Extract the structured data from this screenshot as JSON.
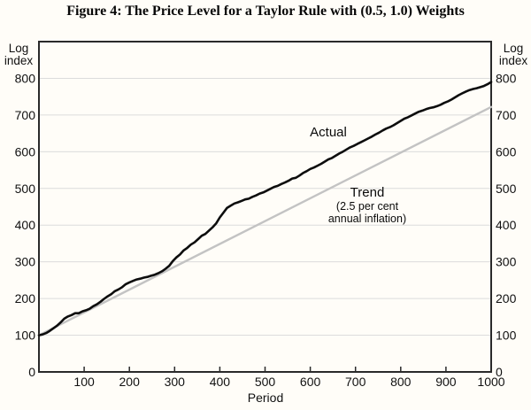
{
  "figure": {
    "title": "Figure 4: The Price Level for a Taylor Rule with (0.5, 1.0) Weights"
  },
  "annotations": {
    "actual_label": "Actual",
    "trend_label": "Trend",
    "trend_sub_line1": "(2.5 per cent",
    "trend_sub_line2": "annual inflation)"
  },
  "colors": {
    "background": "#fffdf8",
    "axis_box": "#2a2a2a",
    "gridline": "#dcdcdc",
    "actual_line": "#0d0d0d",
    "trend_line": "#c3c3c3",
    "text": "#111111"
  },
  "chart_data": {
    "type": "line",
    "title": "Figure 4: The Price Level for a Taylor Rule with (0.5, 1.0) Weights",
    "xlabel": "Period",
    "ylabel_left": "Log index",
    "ylabel_right": "Log index",
    "xlim": [
      0,
      1000
    ],
    "ylim": [
      0,
      900
    ],
    "xticks": [
      100,
      200,
      300,
      400,
      500,
      600,
      700,
      800,
      900,
      1000
    ],
    "yticks": [
      0,
      100,
      200,
      300,
      400,
      500,
      600,
      700,
      800
    ],
    "grid": "horizontal",
    "legend_position": "inline-annotations",
    "series": [
      {
        "name": "Actual",
        "color": "#0d0d0d",
        "width": 2.6,
        "points": [
          [
            0,
            100
          ],
          [
            8,
            102
          ],
          [
            16,
            106
          ],
          [
            24,
            112
          ],
          [
            32,
            119
          ],
          [
            40,
            126
          ],
          [
            48,
            135
          ],
          [
            56,
            145
          ],
          [
            64,
            151
          ],
          [
            72,
            155
          ],
          [
            80,
            160
          ],
          [
            88,
            160
          ],
          [
            96,
            165
          ],
          [
            104,
            168
          ],
          [
            112,
            172
          ],
          [
            120,
            179
          ],
          [
            128,
            184
          ],
          [
            136,
            191
          ],
          [
            144,
            199
          ],
          [
            152,
            206
          ],
          [
            160,
            212
          ],
          [
            168,
            220
          ],
          [
            176,
            225
          ],
          [
            184,
            231
          ],
          [
            192,
            239
          ],
          [
            200,
            244
          ],
          [
            208,
            248
          ],
          [
            216,
            252
          ],
          [
            224,
            254
          ],
          [
            232,
            257
          ],
          [
            240,
            259
          ],
          [
            248,
            262
          ],
          [
            256,
            265
          ],
          [
            264,
            269
          ],
          [
            272,
            274
          ],
          [
            280,
            281
          ],
          [
            288,
            289
          ],
          [
            296,
            302
          ],
          [
            304,
            312
          ],
          [
            312,
            320
          ],
          [
            320,
            331
          ],
          [
            328,
            338
          ],
          [
            336,
            347
          ],
          [
            344,
            353
          ],
          [
            352,
            362
          ],
          [
            360,
            371
          ],
          [
            368,
            376
          ],
          [
            376,
            385
          ],
          [
            384,
            394
          ],
          [
            392,
            405
          ],
          [
            400,
            421
          ],
          [
            408,
            434
          ],
          [
            416,
            447
          ],
          [
            424,
            453
          ],
          [
            432,
            459
          ],
          [
            440,
            462
          ],
          [
            448,
            466
          ],
          [
            456,
            470
          ],
          [
            464,
            472
          ],
          [
            472,
            477
          ],
          [
            480,
            481
          ],
          [
            488,
            486
          ],
          [
            496,
            489
          ],
          [
            504,
            494
          ],
          [
            512,
            499
          ],
          [
            520,
            504
          ],
          [
            528,
            507
          ],
          [
            536,
            512
          ],
          [
            544,
            516
          ],
          [
            552,
            521
          ],
          [
            560,
            527
          ],
          [
            568,
            529
          ],
          [
            576,
            535
          ],
          [
            584,
            542
          ],
          [
            592,
            547
          ],
          [
            600,
            553
          ],
          [
            608,
            557
          ],
          [
            616,
            562
          ],
          [
            624,
            567
          ],
          [
            632,
            573
          ],
          [
            640,
            579
          ],
          [
            648,
            583
          ],
          [
            656,
            589
          ],
          [
            664,
            595
          ],
          [
            672,
            600
          ],
          [
            680,
            606
          ],
          [
            688,
            612
          ],
          [
            696,
            616
          ],
          [
            704,
            621
          ],
          [
            712,
            626
          ],
          [
            720,
            631
          ],
          [
            728,
            636
          ],
          [
            736,
            641
          ],
          [
            744,
            647
          ],
          [
            752,
            652
          ],
          [
            760,
            658
          ],
          [
            768,
            663
          ],
          [
            776,
            667
          ],
          [
            784,
            672
          ],
          [
            792,
            678
          ],
          [
            800,
            684
          ],
          [
            808,
            690
          ],
          [
            816,
            694
          ],
          [
            824,
            699
          ],
          [
            832,
            704
          ],
          [
            840,
            709
          ],
          [
            848,
            712
          ],
          [
            856,
            716
          ],
          [
            864,
            719
          ],
          [
            872,
            721
          ],
          [
            880,
            724
          ],
          [
            888,
            728
          ],
          [
            896,
            733
          ],
          [
            904,
            737
          ],
          [
            912,
            742
          ],
          [
            920,
            748
          ],
          [
            928,
            754
          ],
          [
            936,
            759
          ],
          [
            944,
            764
          ],
          [
            952,
            768
          ],
          [
            960,
            771
          ],
          [
            968,
            773
          ],
          [
            976,
            776
          ],
          [
            984,
            779
          ],
          [
            992,
            784
          ],
          [
            1000,
            790
          ]
        ]
      },
      {
        "name": "Trend",
        "color": "#c3c3c3",
        "width": 2.4,
        "points": [
          [
            0,
            100
          ],
          [
            1000,
            722
          ]
        ]
      }
    ]
  }
}
